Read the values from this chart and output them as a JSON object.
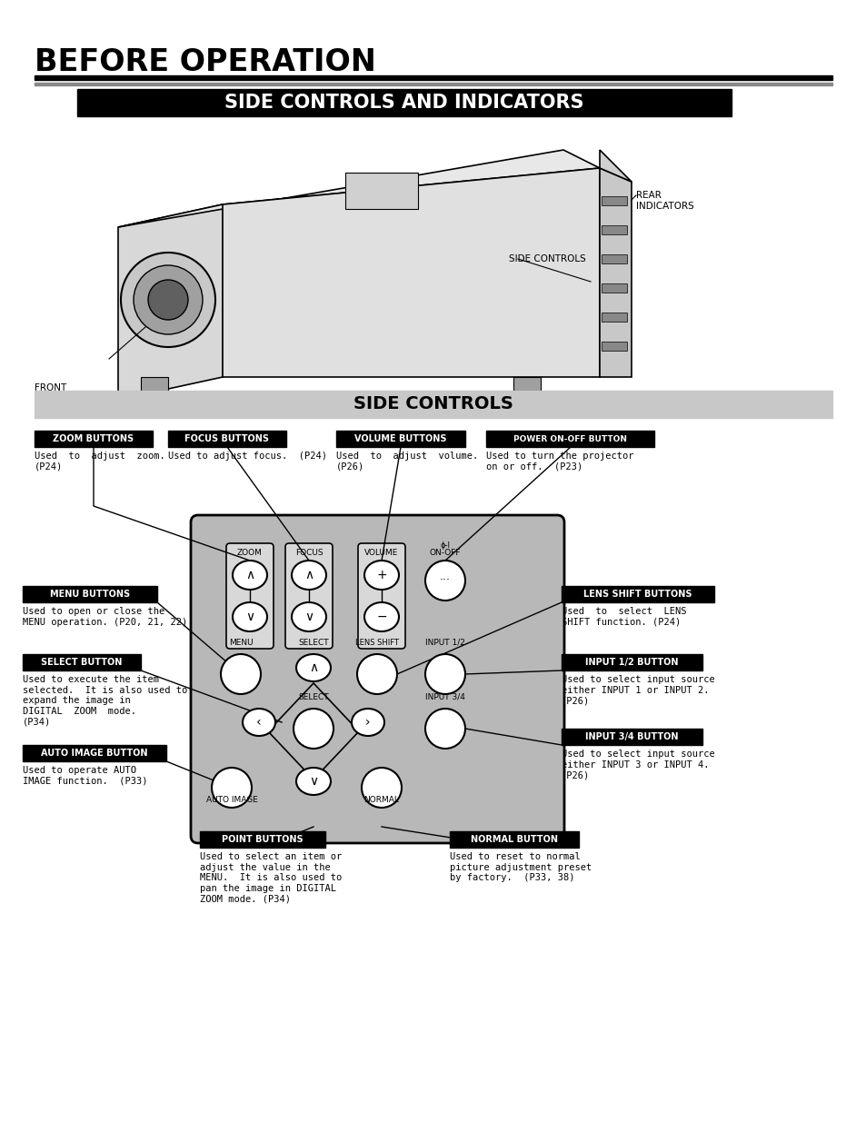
{
  "page_bg": "#ffffff",
  "title_main": "BEFORE OPERATION",
  "title_section": "SIDE CONTROLS AND INDICATORS",
  "title_side_controls": "SIDE CONTROLS"
}
